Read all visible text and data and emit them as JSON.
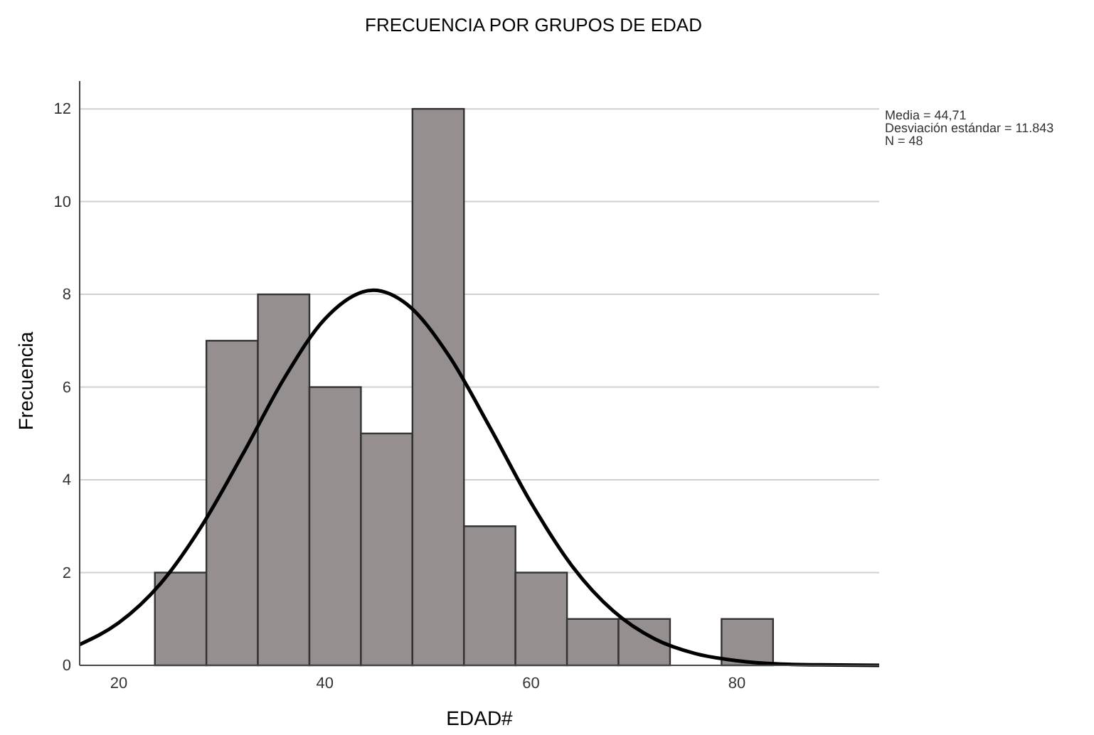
{
  "chart_data": {
    "type": "histogram",
    "title": "FRECUENCIA POR GRUPOS DE EDAD",
    "xlabel": "EDAD#",
    "ylabel": "Frecuencia",
    "bins": [
      23.5,
      28.5,
      33.5,
      38.5,
      43.5,
      48.5,
      53.5,
      58.5,
      63.5,
      68.5,
      73.5,
      78.5,
      83.5
    ],
    "values": [
      2,
      7,
      8,
      6,
      5,
      12,
      3,
      2,
      1,
      1,
      0,
      1
    ],
    "color": "#958f8f",
    "series": [
      {
        "type": "line",
        "color": "#000000",
        "x": [
          16.2,
          20,
          24,
          28,
          32,
          36,
          40,
          44.7,
          48,
          52,
          56,
          60,
          64,
          68,
          72,
          76,
          80,
          84,
          88,
          93.8
        ],
        "values": [
          0.45,
          0.92,
          1.75,
          2.99,
          4.54,
          6.17,
          7.47,
          8.09,
          7.78,
          6.69,
          5.14,
          3.51,
          2.14,
          1.17,
          0.57,
          0.25,
          0.1,
          0.03,
          0.01,
          0
        ]
      }
    ],
    "xlim": [
      16.2,
      93.8
    ],
    "ylim": [
      0,
      12.6
    ],
    "xticks": [
      20,
      40,
      60,
      80
    ],
    "yticks": [
      0,
      2,
      4,
      6,
      8,
      10,
      12
    ],
    "grid": "y",
    "annotations": [
      "Media = 44,71",
      "Desviación estándar = 11.843",
      "N = 48"
    ]
  }
}
